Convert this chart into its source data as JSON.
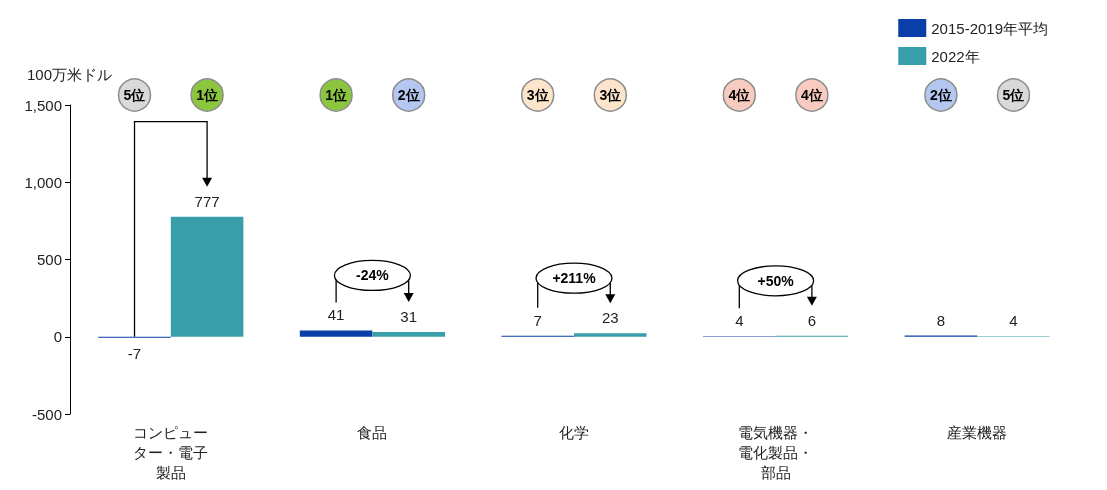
{
  "chart_data": {
    "type": "bar",
    "ylabel": "100万米ドル",
    "categories": [
      "コンピューター・電子製品",
      "食品",
      "化学",
      "電気機器・電化製品・部品",
      "産業機器"
    ],
    "series": [
      {
        "name": "2015-2019年平均",
        "color": "#0a3ea8",
        "values": [
          -7,
          41,
          7,
          4,
          8
        ]
      },
      {
        "name": "2022年",
        "color": "#389faa",
        "values": [
          777,
          31,
          23,
          6,
          4
        ]
      }
    ],
    "ylim": [
      -500,
      1500
    ],
    "yticks": [
      {
        "value": -500,
        "label": "-500"
      },
      0,
      {
        "value": 500,
        "label": "500"
      },
      {
        "value": 1000,
        "label": "1,000"
      },
      {
        "value": 1500,
        "label": "1,500"
      }
    ],
    "data_labels": true,
    "legend": "top right",
    "grid": false,
    "annotations": [
      "5位",
      "1位",
      "1位",
      "2位",
      "3位",
      "3位",
      "4位",
      "4位",
      "2位",
      "5位",
      "-24%",
      "+211%",
      "+50%"
    ]
  }
}
